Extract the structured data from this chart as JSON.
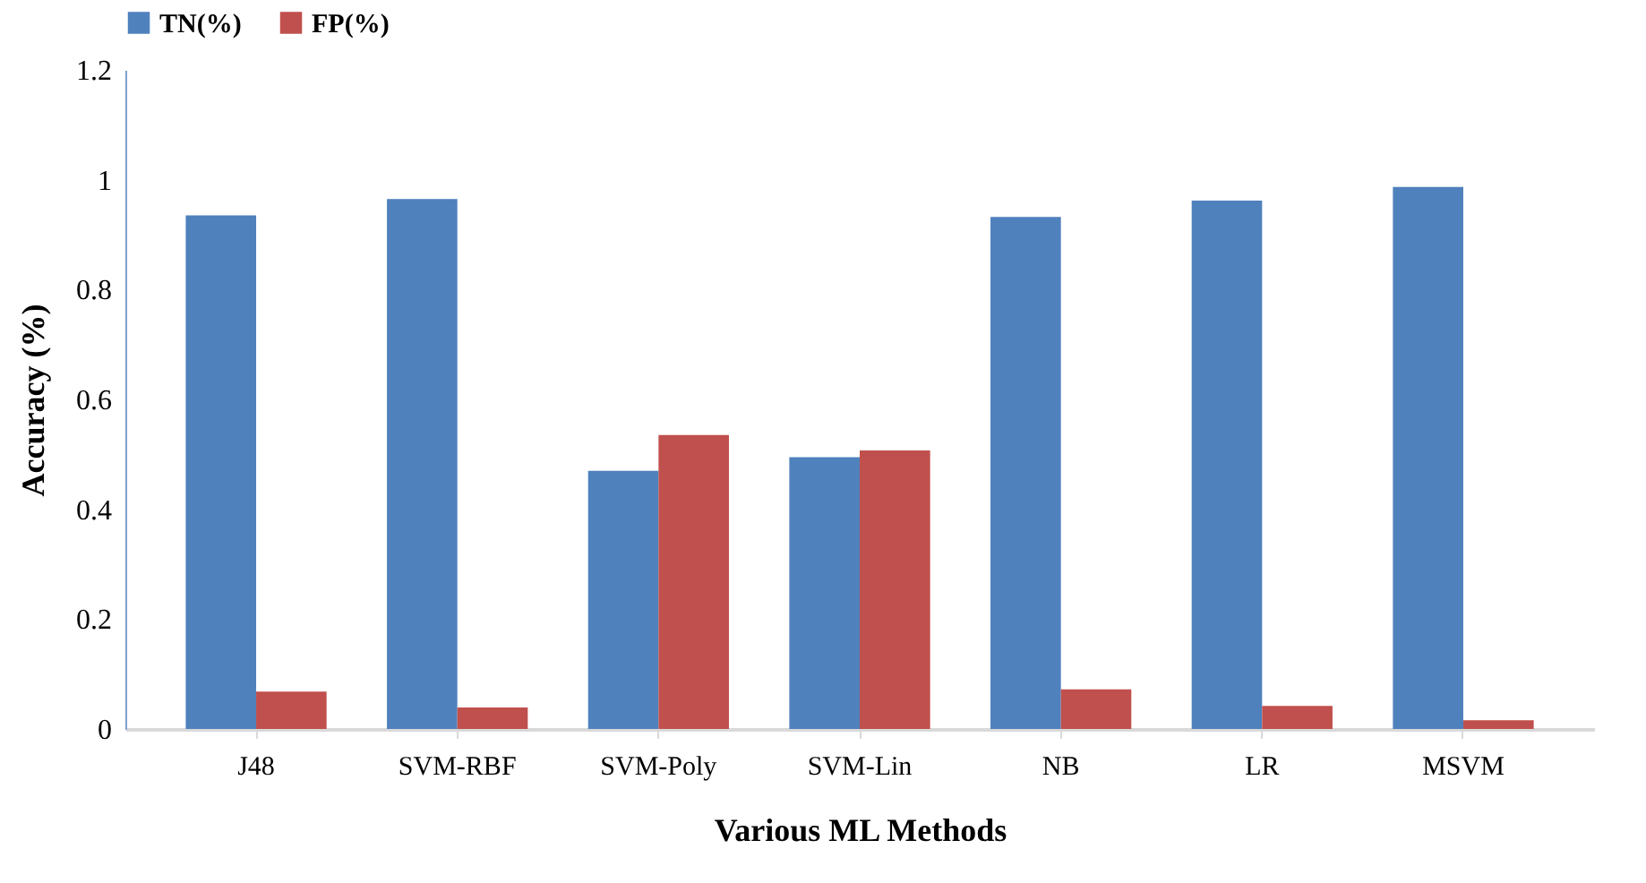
{
  "chart_data": {
    "type": "bar",
    "xlabel": "Various ML Methods",
    "ylabel": "Accuracy (%)",
    "categories": [
      "J48",
      "SVM-RBF",
      "SVM-Poly",
      "SVM-Lin",
      "NB",
      "LR",
      "MSVM"
    ],
    "series": [
      {
        "name": "TN(%)",
        "color": "#4f81bd",
        "values": [
          0.935,
          0.965,
          0.47,
          0.495,
          0.932,
          0.962,
          0.987
        ]
      },
      {
        "name": "FP(%)",
        "color": "#c0504d",
        "values": [
          0.068,
          0.039,
          0.535,
          0.507,
          0.072,
          0.042,
          0.016
        ]
      }
    ],
    "ylim": [
      0,
      1.2
    ],
    "yticks": [
      0,
      0.2,
      0.4,
      0.6,
      0.8,
      1,
      1.2
    ],
    "grid": false,
    "legend": "top"
  }
}
